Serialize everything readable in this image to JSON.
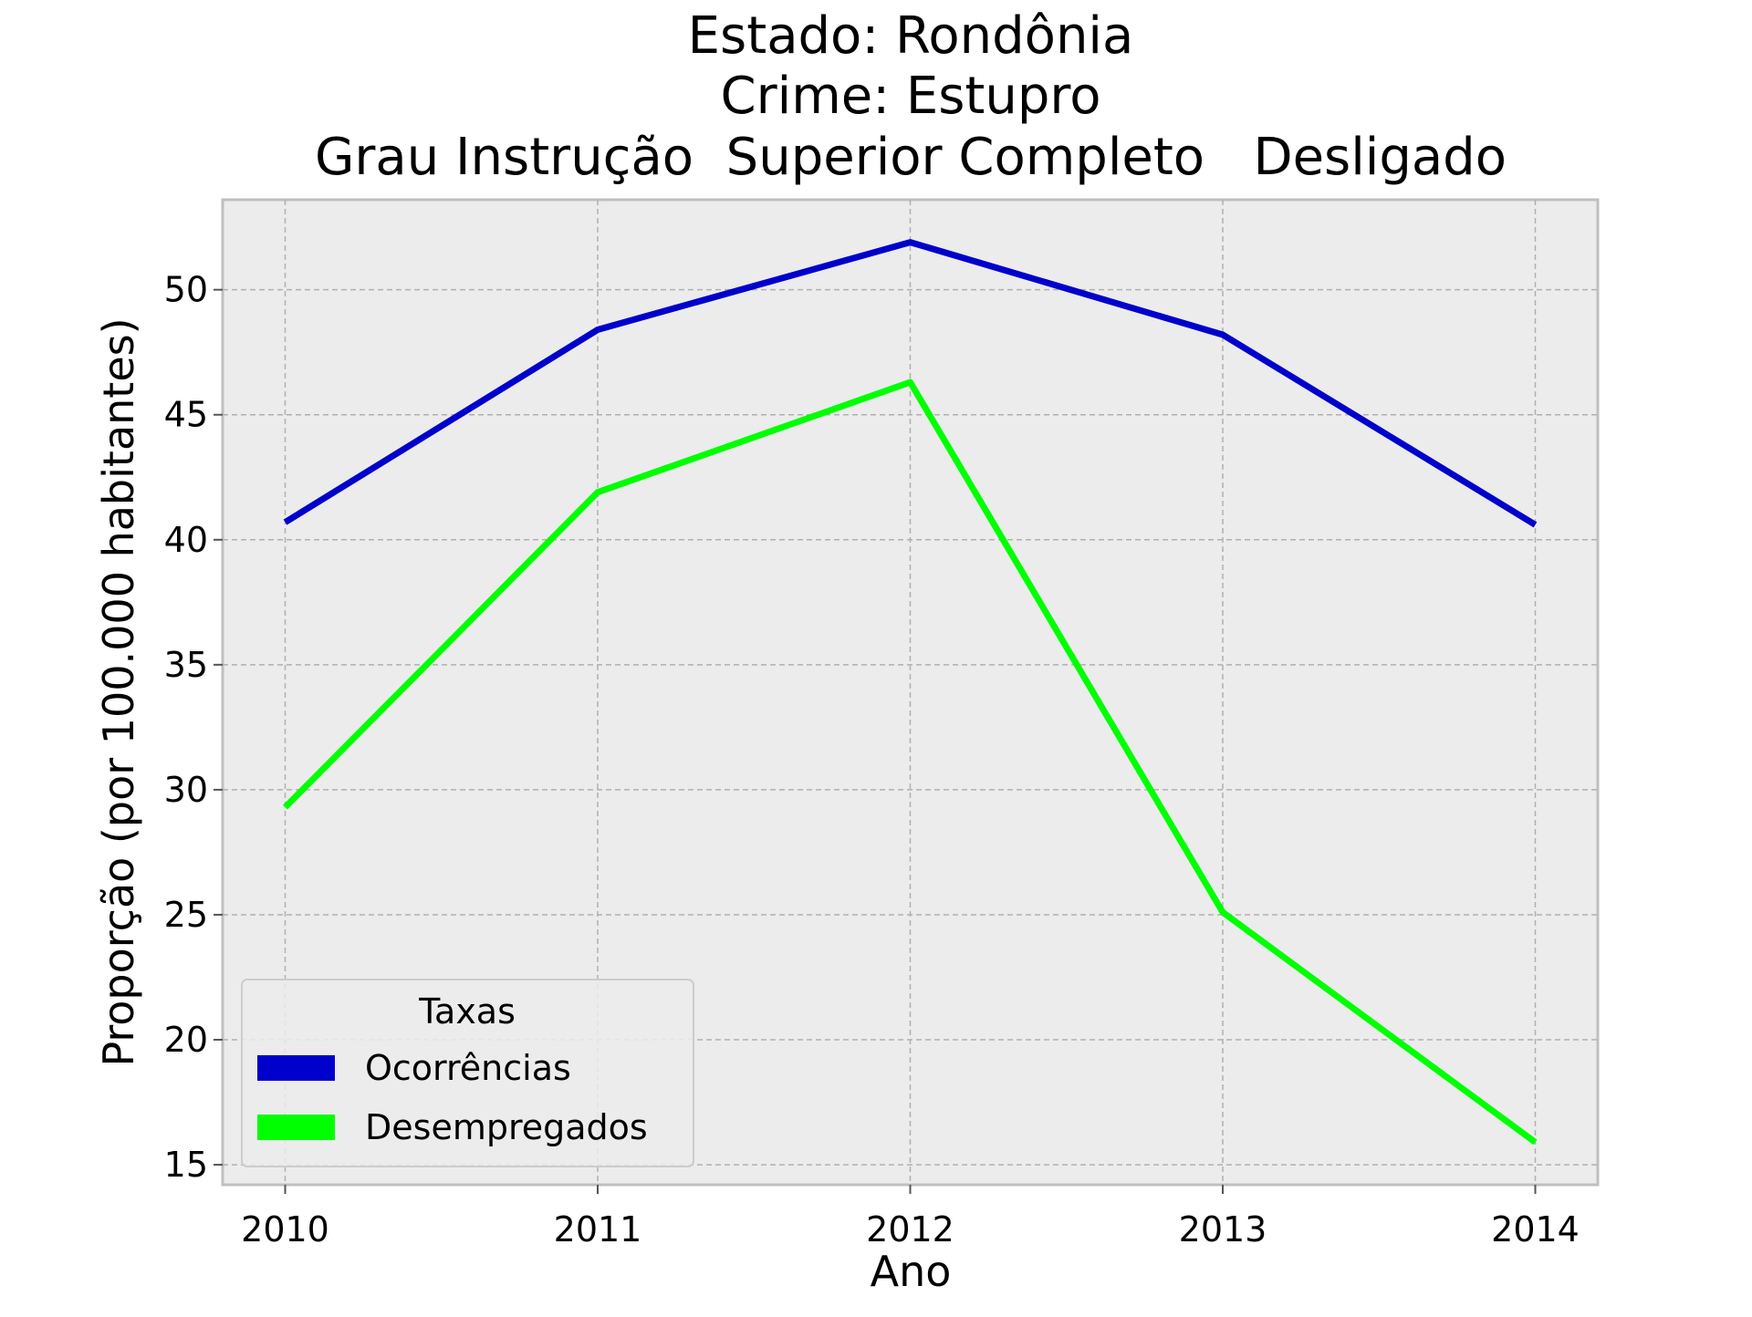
{
  "chart_data": {
    "type": "line",
    "title": [
      "Estado: Rondônia",
      "Crime: Estupro",
      "Grau Instrução  Superior Completo   Desligado"
    ],
    "xlabel": "Ano",
    "ylabel": "Proporção (por 100.000 habitantes)",
    "x": [
      2010,
      2011,
      2012,
      2013,
      2014
    ],
    "x_tick_labels": [
      "2010",
      "2011",
      "2012",
      "2013",
      "2014"
    ],
    "y_ticks": [
      15,
      20,
      25,
      30,
      35,
      40,
      45,
      50
    ],
    "y_tick_labels": [
      "15",
      "20",
      "25",
      "30",
      "35",
      "40",
      "45",
      "50"
    ],
    "xlim": [
      2009.8,
      2014.2
    ],
    "ylim": [
      14.2,
      53.6
    ],
    "grid": true,
    "legend": {
      "title": "Taxas",
      "placement": "lower-left"
    },
    "series": [
      {
        "name": "Ocorrências",
        "color": "#0000cc",
        "values": [
          40.7,
          48.4,
          51.9,
          48.2,
          40.6
        ]
      },
      {
        "name": "Desempregados",
        "color": "#00ff00",
        "values": [
          29.3,
          41.9,
          46.3,
          25.1,
          15.9
        ]
      }
    ]
  }
}
